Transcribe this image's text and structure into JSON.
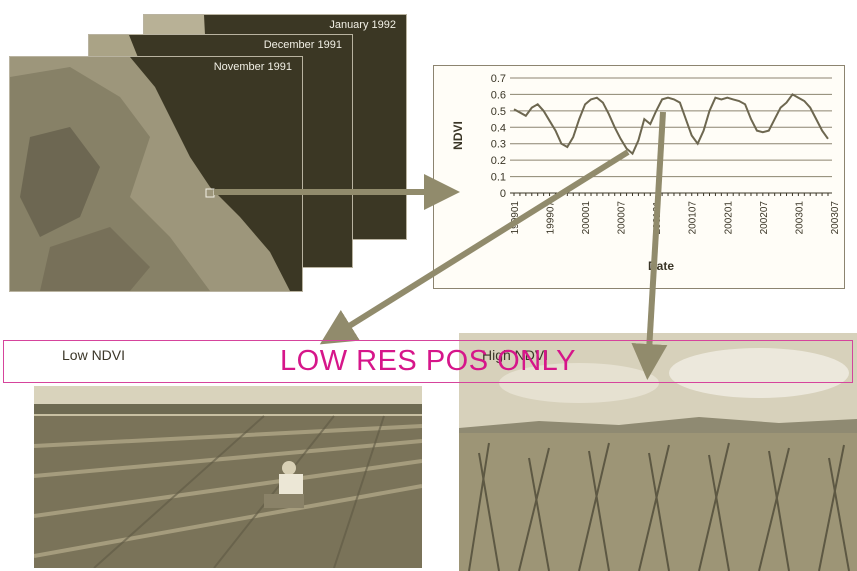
{
  "stacked_images": {
    "back_label": "January 1992",
    "middle_label": "December 1991",
    "front_label": "November 1991"
  },
  "photos": {
    "low_label": "Low NDVI",
    "high_label": "High NDVI"
  },
  "stamp": {
    "text": "LOW RES POS ONLY",
    "color": "#d6168a"
  },
  "colors": {
    "land_dark": "#3b3724",
    "arrow": "#918b6c",
    "photo_tint": "#bdb48f"
  },
  "chart_data": {
    "type": "line",
    "title": "",
    "xlabel": "Date",
    "ylabel": "NDVI",
    "ylim": [
      0,
      0.7
    ],
    "yticks": [
      "0",
      "0.1",
      "0.2",
      "0.3",
      "0.4",
      "0.5",
      "0.6",
      "0.7"
    ],
    "x_tick_labels": [
      "199901",
      "199907",
      "200001",
      "200007",
      "200101",
      "200107",
      "200201",
      "200207",
      "200301",
      "200307"
    ],
    "grid": true,
    "series": [
      {
        "values": [
          0.51,
          0.49,
          0.47,
          0.52,
          0.54,
          0.5,
          0.44,
          0.38,
          0.3,
          0.28,
          0.34,
          0.45,
          0.54,
          0.57,
          0.58,
          0.55,
          0.48,
          0.4,
          0.33,
          0.27,
          0.24,
          0.32,
          0.45,
          0.42,
          0.5,
          0.57,
          0.58,
          0.57,
          0.55,
          0.45,
          0.35,
          0.3,
          0.38,
          0.5,
          0.58,
          0.57,
          0.58,
          0.57,
          0.56,
          0.54,
          0.45,
          0.38,
          0.37,
          0.38,
          0.45,
          0.52,
          0.55,
          0.6,
          0.58,
          0.56,
          0.52,
          0.45,
          0.38,
          0.33
        ]
      }
    ]
  }
}
